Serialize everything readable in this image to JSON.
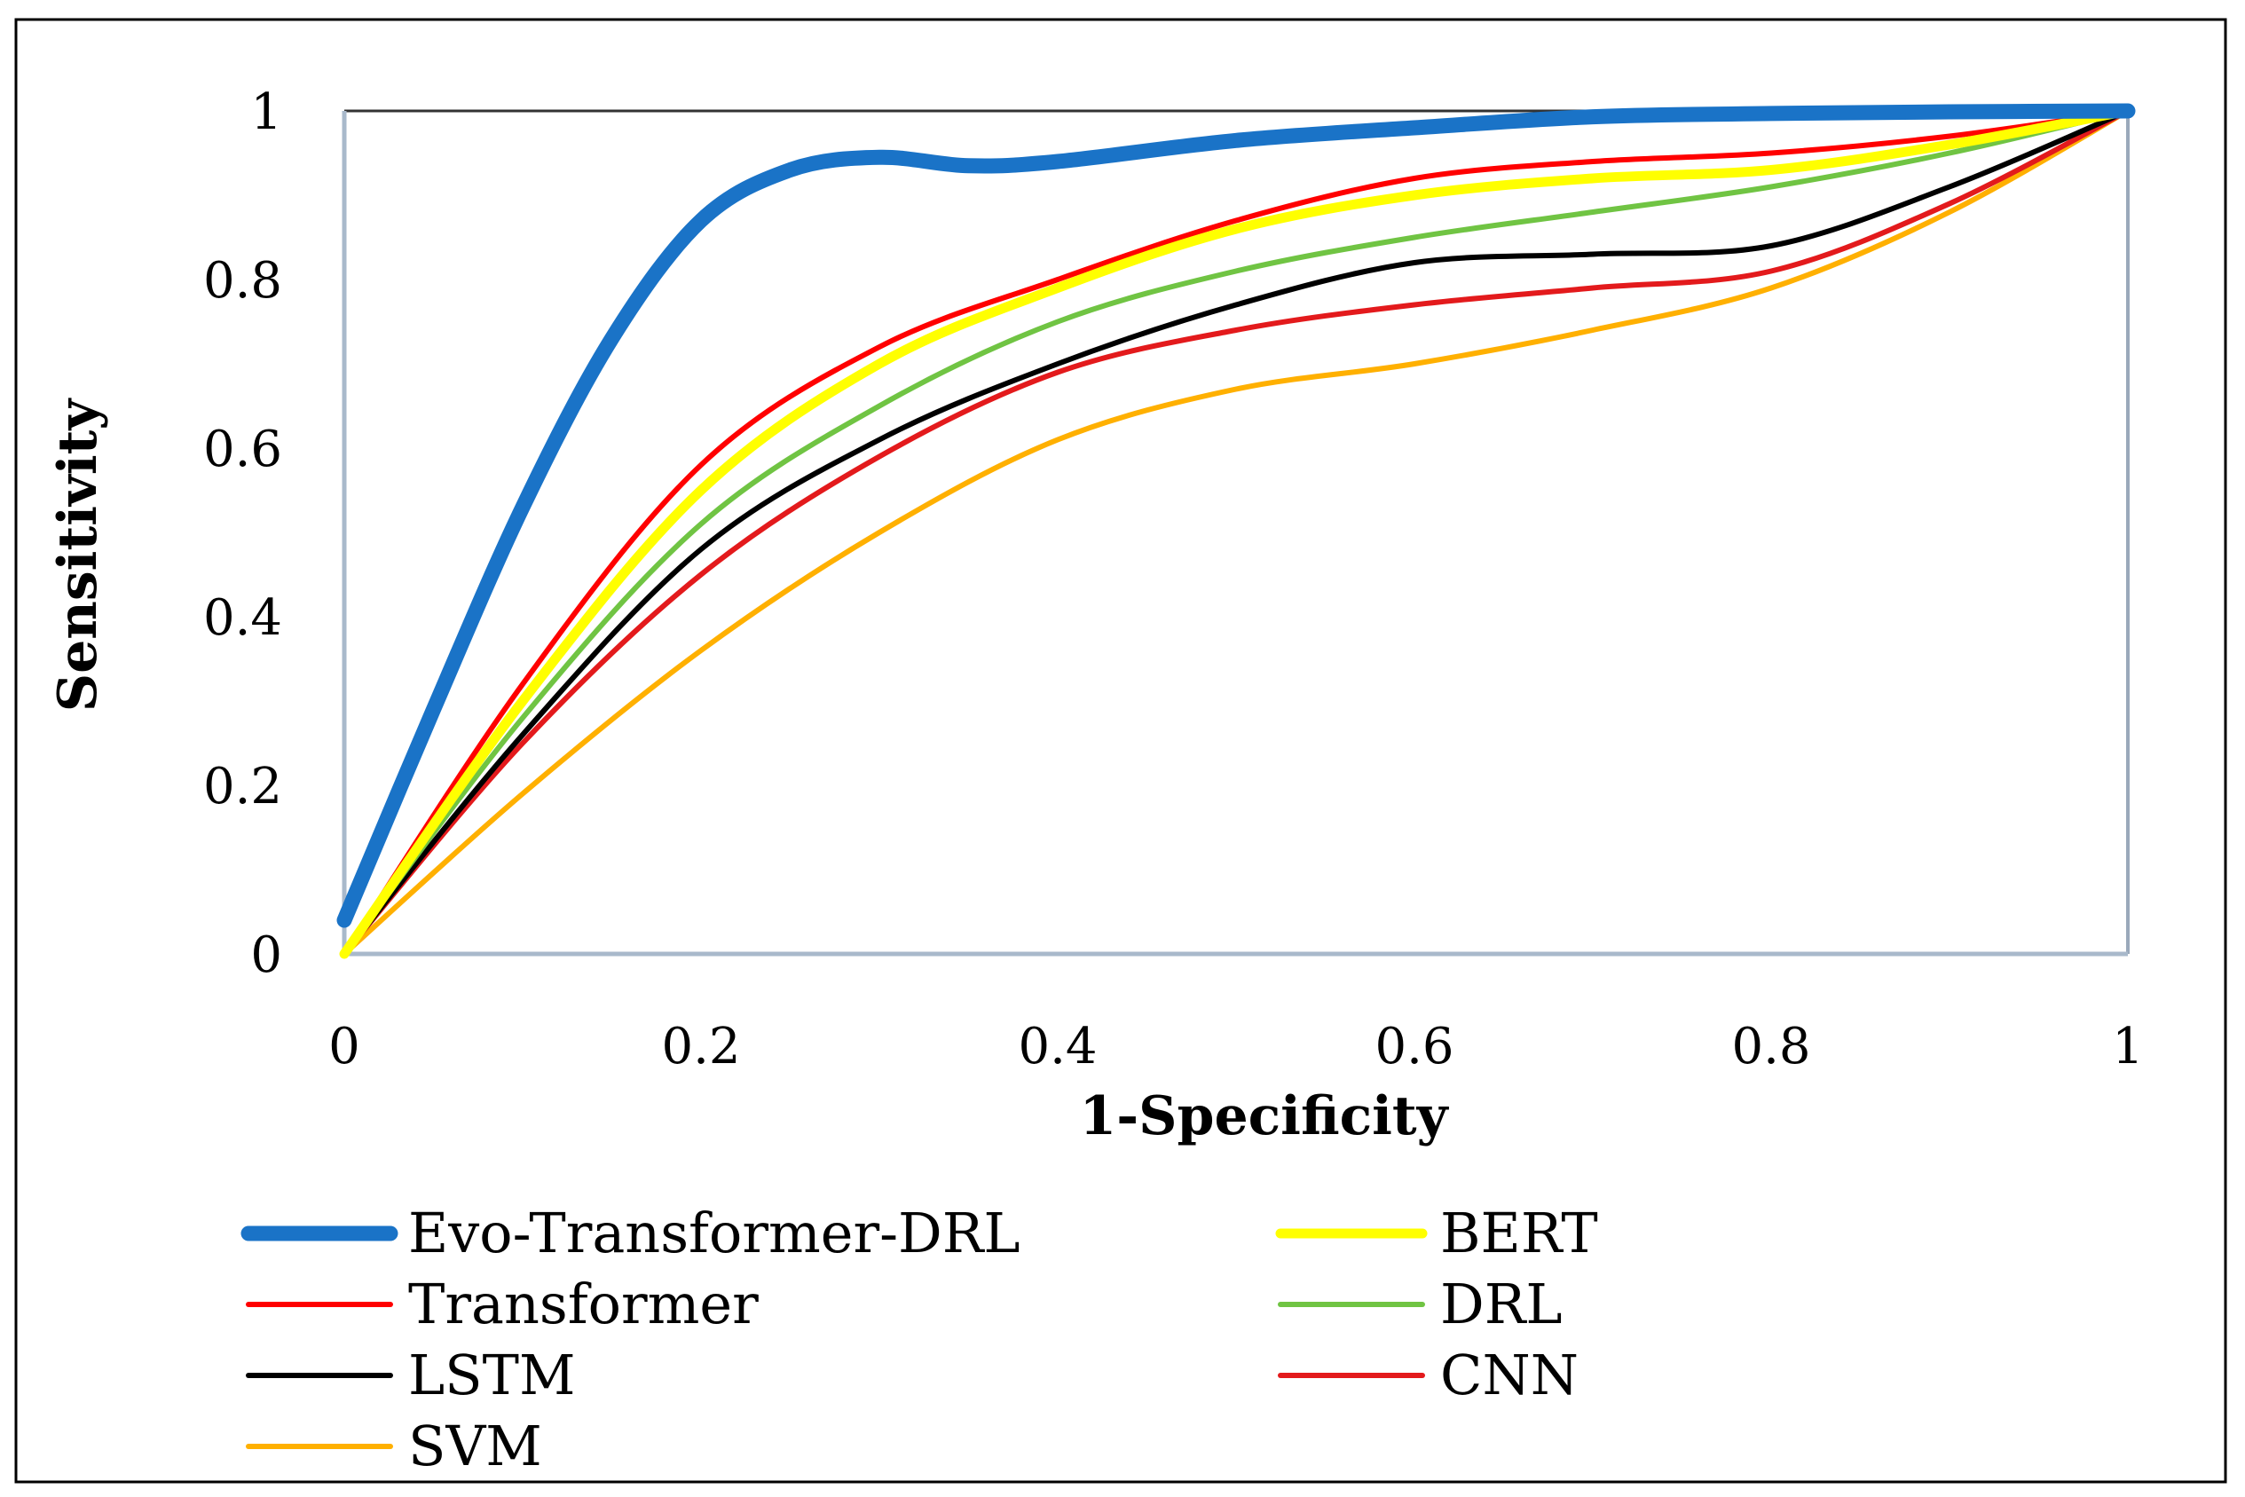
{
  "chart_data": {
    "type": "line",
    "title": "",
    "xlabel": "1-Specificity",
    "ylabel": "Sensitivity",
    "xlim": [
      0,
      1
    ],
    "ylim": [
      0,
      1
    ],
    "x_ticks": [
      "0",
      "0.2",
      "0.4",
      "0.6",
      "0.8",
      "1"
    ],
    "y_ticks": [
      "0",
      "0.2",
      "0.4",
      "0.6",
      "0.8",
      "1"
    ],
    "grid": false,
    "legend_position": "bottom",
    "series": [
      {
        "name": "Evo-Transformer-DRL",
        "color": "#1a73c7",
        "x": [
          0,
          0.05,
          0.1,
          0.15,
          0.2,
          0.25,
          0.3,
          0.35,
          0.4,
          0.5,
          0.6,
          0.7,
          0.8,
          0.9,
          1
        ],
        "y": [
          0.04,
          0.29,
          0.53,
          0.73,
          0.87,
          0.93,
          0.945,
          0.935,
          0.94,
          0.965,
          0.98,
          0.993,
          0.997,
          0.999,
          1
        ]
      },
      {
        "name": "BERT",
        "color": "#ffff00",
        "x": [
          0,
          0.1,
          0.2,
          0.3,
          0.4,
          0.5,
          0.6,
          0.7,
          0.8,
          0.9,
          1
        ],
        "y": [
          0,
          0.3,
          0.55,
          0.7,
          0.79,
          0.86,
          0.9,
          0.92,
          0.93,
          0.96,
          1
        ]
      },
      {
        "name": "Transformer",
        "color": "#ff0000",
        "x": [
          0,
          0.1,
          0.2,
          0.3,
          0.4,
          0.5,
          0.6,
          0.7,
          0.8,
          0.9,
          1
        ],
        "y": [
          0,
          0.32,
          0.58,
          0.72,
          0.8,
          0.87,
          0.92,
          0.94,
          0.95,
          0.97,
          1
        ]
      },
      {
        "name": "DRL",
        "color": "#70c443",
        "x": [
          0,
          0.1,
          0.2,
          0.3,
          0.4,
          0.5,
          0.6,
          0.7,
          0.8,
          0.9,
          1
        ],
        "y": [
          0,
          0.28,
          0.51,
          0.65,
          0.75,
          0.81,
          0.85,
          0.88,
          0.91,
          0.95,
          1
        ]
      },
      {
        "name": "LSTM",
        "color": "#000000",
        "x": [
          0,
          0.1,
          0.2,
          0.3,
          0.4,
          0.5,
          0.6,
          0.7,
          0.8,
          0.9,
          1
        ],
        "y": [
          0,
          0.26,
          0.48,
          0.61,
          0.7,
          0.77,
          0.82,
          0.83,
          0.84,
          0.91,
          1
        ]
      },
      {
        "name": "CNN",
        "color": "#e31a1c",
        "x": [
          0,
          0.1,
          0.2,
          0.3,
          0.4,
          0.5,
          0.6,
          0.7,
          0.8,
          0.9,
          1
        ],
        "y": [
          0,
          0.25,
          0.45,
          0.59,
          0.69,
          0.74,
          0.77,
          0.79,
          0.81,
          0.89,
          1
        ]
      },
      {
        "name": "SVM",
        "color": "#ffb000",
        "x": [
          0,
          0.1,
          0.2,
          0.3,
          0.4,
          0.5,
          0.6,
          0.7,
          0.8,
          0.9,
          1
        ],
        "y": [
          0,
          0.19,
          0.36,
          0.5,
          0.61,
          0.67,
          0.7,
          0.74,
          0.79,
          0.88,
          1
        ]
      }
    ]
  }
}
